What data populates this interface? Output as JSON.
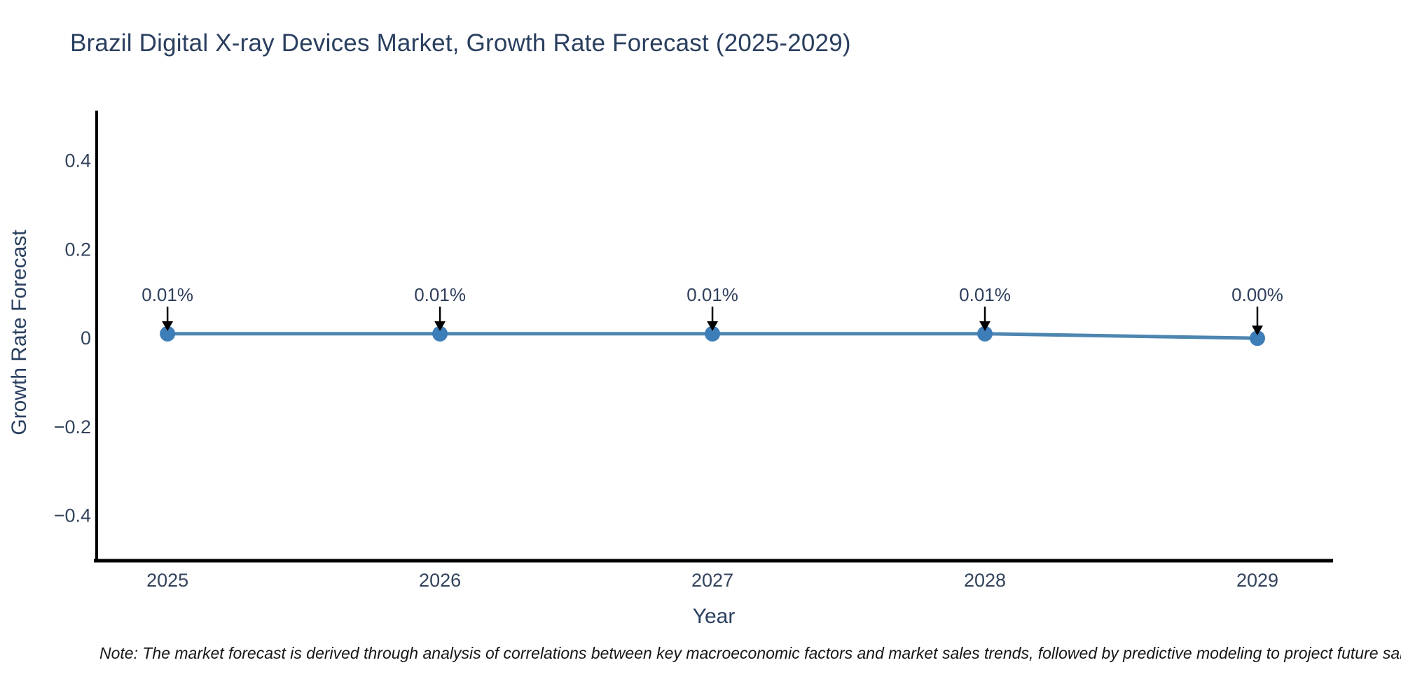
{
  "note": "Note: The market forecast is derived through analysis of correlations between key macroeconomic factors and market sales trends, followed by predictive modeling to project future sal",
  "chart_data": {
    "type": "line",
    "title": "Brazil Digital X-ray Devices Market, Growth Rate Forecast (2025-2029)",
    "xlabel": "Year",
    "ylabel": "Growth Rate Forecast",
    "x": [
      2025,
      2026,
      2027,
      2028,
      2029
    ],
    "series": [
      {
        "name": "Growth Rate Forecast",
        "values": [
          0.01,
          0.01,
          0.01,
          0.01,
          0.0
        ]
      }
    ],
    "point_labels": [
      "0.01%",
      "0.01%",
      "0.01%",
      "0.01%",
      "0.00%"
    ],
    "xtick_labels": [
      "2025",
      "2026",
      "2027",
      "2028",
      "2029"
    ],
    "yticks": [
      0.4,
      0.2,
      0,
      -0.2,
      -0.4
    ],
    "ytick_labels": [
      "0.4",
      "0.2",
      "0",
      "−0.2",
      "−0.4"
    ],
    "xlim": [
      2024.74,
      2029.27
    ],
    "ylim": [
      -0.5,
      0.51
    ],
    "grid": false,
    "legend": "none",
    "colors": {
      "background": "#ffffff",
      "line": "#4d86b0",
      "marker": "#3d7db8",
      "axis": "#000000",
      "title_text": "#2a3f5f",
      "tick_text": "#33435c",
      "annotation_text": "#2f3f5c",
      "annotation_arrow": "#000000",
      "note_text": "#161616"
    }
  }
}
